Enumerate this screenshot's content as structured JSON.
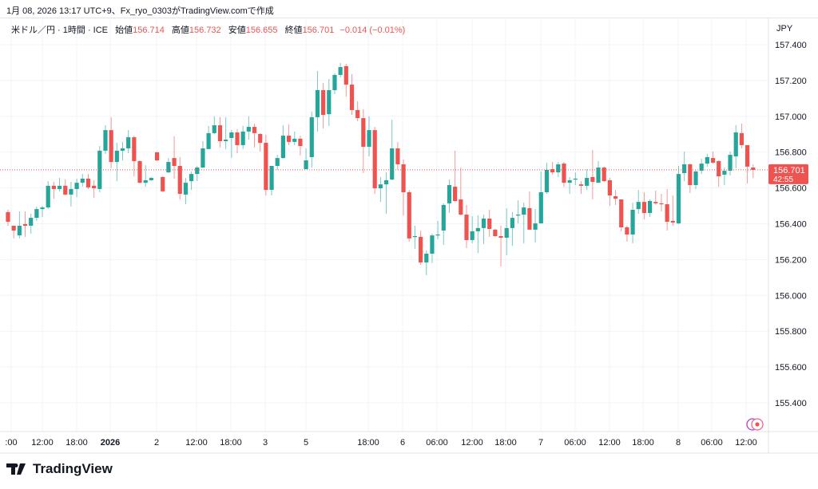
{
  "caption": "1月 08, 2026 13:17 UTC+9、Fx_ryo_0303がTradingView.comで作成",
  "legend": {
    "symbol": "米ドル／円 · 1時間 · ICE",
    "open_label": "始値",
    "open": "156.714",
    "high_label": "高値",
    "high": "156.732",
    "low_label": "安値",
    "low": "156.655",
    "close_label": "終値",
    "close": "156.701",
    "change": "−0.014 (−0.01%)"
  },
  "brand": "TradingView",
  "icons": {
    "logo": "tradingview-logo-icon",
    "markers": [
      "purple-circle-marker-icon",
      "red-target-marker-icon"
    ]
  },
  "colors": {
    "up": "#26a69a",
    "down": "#ef5350",
    "grid": "#f0f3fa",
    "text": "#131722"
  },
  "chart_data": {
    "type": "candlestick",
    "symbol": "USD/JPY",
    "timeframe": "1時間",
    "currency_label": "JPY",
    "ylim": [
      155.3,
      157.45
    ],
    "y_ticks": [
      "157.400",
      "157.200",
      "157.000",
      "156.800",
      "156.600",
      "156.400",
      "156.200",
      "156.000",
      "155.800",
      "155.600",
      "155.400"
    ],
    "x_ticks": [
      ":00",
      "12:00",
      "18:00",
      "2026",
      "2",
      "12:00",
      "18:00",
      "3",
      "5",
      "18:00",
      "6",
      "06:00",
      "12:00",
      "18:00",
      "7",
      "06:00",
      "12:00",
      "18:00",
      "8",
      "06:00",
      "12:00"
    ],
    "bold_x_tick": "2026",
    "last_price": "156.701",
    "countdown": "42:55",
    "grid": true,
    "candles_ohlc": [
      [
        156.465,
        156.478,
        156.389,
        156.411
      ],
      [
        156.389,
        156.389,
        156.318,
        156.362
      ],
      [
        156.335,
        156.469,
        156.318,
        156.389
      ],
      [
        156.398,
        156.469,
        156.327,
        156.389
      ],
      [
        156.389,
        156.456,
        156.344,
        156.433
      ],
      [
        156.433,
        156.496,
        156.416,
        156.482
      ],
      [
        156.482,
        156.5,
        156.438,
        156.491
      ],
      [
        156.491,
        156.638,
        156.482,
        156.612
      ],
      [
        156.612,
        156.634,
        156.54,
        156.594
      ],
      [
        156.594,
        156.656,
        156.58,
        156.612
      ],
      [
        156.612,
        156.647,
        156.558,
        156.563
      ],
      [
        156.563,
        156.634,
        156.496,
        156.594
      ],
      [
        156.594,
        156.652,
        156.549,
        156.629
      ],
      [
        156.629,
        156.678,
        156.607,
        156.652
      ],
      [
        156.652,
        156.678,
        156.594,
        156.603
      ],
      [
        156.612,
        156.643,
        156.545,
        156.598
      ],
      [
        156.594,
        156.834,
        156.576,
        156.808
      ],
      [
        156.808,
        156.95,
        156.79,
        156.923
      ],
      [
        156.923,
        156.995,
        156.71,
        156.745
      ],
      [
        156.745,
        156.852,
        156.638,
        156.808
      ],
      [
        156.808,
        156.857,
        156.754,
        156.821
      ],
      [
        156.821,
        156.923,
        156.794,
        156.883
      ],
      [
        156.883,
        156.892,
        156.665,
        156.75
      ],
      [
        156.75,
        156.754,
        156.625,
        156.629
      ],
      [
        156.629,
        156.727,
        156.607,
        156.643
      ],
      [
        156.643,
        156.66,
        156.64,
        156.656
      ],
      [
        156.799,
        156.803,
        156.75,
        156.754
      ],
      [
        156.661,
        156.665,
        156.576,
        156.581
      ],
      [
        156.687,
        156.767,
        156.683,
        156.745
      ],
      [
        156.767,
        156.888,
        156.652,
        156.723
      ],
      [
        156.723,
        156.772,
        156.536,
        156.567
      ],
      [
        156.563,
        156.656,
        156.509,
        156.629
      ],
      [
        156.638,
        156.692,
        156.589,
        156.678
      ],
      [
        156.678,
        156.723,
        156.638,
        156.714
      ],
      [
        156.714,
        156.861,
        156.71,
        156.821
      ],
      [
        156.817,
        156.946,
        156.817,
        156.906
      ],
      [
        156.906,
        157.0,
        156.901,
        156.95
      ],
      [
        156.95,
        156.995,
        156.826,
        156.861
      ],
      [
        156.861,
        156.995,
        156.817,
        156.87
      ],
      [
        156.879,
        156.923,
        156.768,
        156.91
      ],
      [
        156.91,
        156.928,
        156.794,
        156.839
      ],
      [
        156.839,
        156.946,
        156.817,
        156.915
      ],
      [
        156.915,
        157.0,
        156.87,
        156.941
      ],
      [
        156.941,
        156.959,
        156.826,
        156.906
      ],
      [
        156.901,
        156.906,
        156.803,
        156.852
      ],
      [
        156.852,
        156.897,
        156.558,
        156.589
      ],
      [
        156.589,
        156.723,
        156.558,
        156.723
      ],
      [
        156.723,
        156.785,
        156.701,
        156.767
      ],
      [
        156.767,
        156.95,
        156.763,
        156.892
      ],
      [
        156.892,
        156.955,
        156.839,
        156.857
      ],
      [
        156.857,
        156.915,
        156.839,
        156.875
      ],
      [
        156.875,
        156.892,
        156.781,
        156.834
      ],
      [
        156.705,
        156.821,
        156.705,
        156.754
      ],
      [
        156.772,
        157.026,
        156.714,
        156.995
      ],
      [
        156.995,
        157.253,
        156.915,
        157.146
      ],
      [
        157.146,
        157.186,
        156.932,
        157.008
      ],
      [
        157.012,
        157.208,
        156.946,
        157.146
      ],
      [
        157.146,
        157.24,
        157.124,
        157.231
      ],
      [
        157.231,
        157.298,
        157.217,
        157.275
      ],
      [
        157.28,
        157.293,
        157.11,
        157.177
      ],
      [
        157.177,
        157.235,
        157.008,
        157.035
      ],
      [
        157.035,
        157.084,
        156.972,
        156.99
      ],
      [
        156.99,
        157.039,
        156.683,
        156.83
      ],
      [
        156.83,
        157.0,
        156.776,
        156.923
      ],
      [
        156.923,
        156.941,
        156.567,
        156.598
      ],
      [
        156.598,
        156.661,
        156.522,
        156.62
      ],
      [
        156.62,
        156.687,
        156.456,
        156.643
      ],
      [
        156.647,
        156.981,
        156.643,
        156.821
      ],
      [
        156.821,
        156.857,
        156.701,
        156.732
      ],
      [
        156.732,
        156.759,
        156.447,
        156.576
      ],
      [
        156.576,
        156.589,
        156.3,
        156.318
      ],
      [
        156.327,
        156.389,
        156.26,
        156.331
      ],
      [
        156.327,
        156.362,
        156.171,
        156.184
      ],
      [
        156.184,
        156.251,
        156.113,
        156.233
      ],
      [
        156.233,
        156.344,
        156.18,
        156.335
      ],
      [
        156.335,
        156.416,
        156.313,
        156.34
      ],
      [
        156.362,
        156.514,
        156.282,
        156.505
      ],
      [
        156.514,
        156.647,
        156.46,
        156.616
      ],
      [
        156.607,
        156.808,
        156.522,
        156.527
      ],
      [
        156.536,
        156.714,
        156.447,
        156.451
      ],
      [
        156.451,
        156.505,
        156.264,
        156.309
      ],
      [
        156.309,
        156.442,
        156.291,
        156.358
      ],
      [
        156.358,
        156.447,
        156.237,
        156.376
      ],
      [
        156.376,
        156.451,
        156.287,
        156.429
      ],
      [
        156.429,
        156.478,
        156.327,
        156.371
      ],
      [
        156.367,
        156.371,
        156.327,
        156.331
      ],
      [
        156.331,
        156.389,
        156.162,
        156.322
      ],
      [
        156.322,
        156.487,
        156.224,
        156.376
      ],
      [
        156.376,
        156.465,
        156.278,
        156.433
      ],
      [
        156.447,
        156.531,
        156.402,
        156.451
      ],
      [
        156.451,
        156.518,
        156.291,
        156.491
      ],
      [
        156.487,
        156.58,
        156.367,
        156.367
      ],
      [
        156.367,
        156.482,
        156.295,
        156.402
      ],
      [
        156.402,
        156.692,
        156.402,
        156.576
      ],
      [
        156.576,
        156.741,
        156.567,
        156.701
      ],
      [
        156.705,
        156.745,
        156.674,
        156.687
      ],
      [
        156.687,
        156.745,
        156.661,
        156.732
      ],
      [
        156.736,
        156.745,
        156.607,
        156.629
      ],
      [
        156.629,
        156.661,
        156.567,
        156.643
      ],
      [
        156.65,
        156.687,
        156.616,
        156.652
      ],
      [
        156.62,
        156.638,
        156.567,
        156.612
      ],
      [
        156.612,
        156.705,
        156.589,
        156.656
      ],
      [
        156.661,
        156.812,
        156.536,
        156.634
      ],
      [
        156.629,
        156.75,
        156.629,
        156.714
      ],
      [
        156.714,
        156.719,
        156.634,
        156.638
      ],
      [
        156.643,
        156.656,
        156.5,
        156.558
      ],
      [
        156.554,
        156.589,
        156.505,
        156.54
      ],
      [
        156.536,
        156.536,
        156.358,
        156.38
      ],
      [
        156.38,
        156.389,
        156.3,
        156.34
      ],
      [
        156.34,
        156.518,
        156.291,
        156.478
      ],
      [
        156.482,
        156.589,
        156.456,
        156.522
      ],
      [
        156.522,
        156.576,
        156.424,
        156.46
      ],
      [
        156.46,
        156.536,
        156.438,
        156.527
      ],
      [
        156.522,
        156.585,
        156.505,
        156.514
      ],
      [
        156.514,
        156.567,
        156.469,
        156.509
      ],
      [
        156.509,
        156.594,
        156.362,
        156.411
      ],
      [
        156.416,
        156.558,
        156.389,
        156.407
      ],
      [
        156.402,
        156.723,
        156.398,
        156.678
      ],
      [
        156.683,
        156.803,
        156.638,
        156.732
      ],
      [
        156.732,
        156.736,
        156.572,
        156.616
      ],
      [
        156.616,
        156.701,
        156.594,
        156.692
      ],
      [
        156.696,
        156.763,
        156.678,
        156.736
      ],
      [
        156.736,
        156.79,
        156.719,
        156.772
      ],
      [
        156.767,
        156.803,
        156.736,
        156.741
      ],
      [
        156.75,
        156.754,
        156.607,
        156.665
      ],
      [
        156.674,
        156.714,
        156.616,
        156.696
      ],
      [
        156.696,
        156.803,
        156.669,
        156.785
      ],
      [
        156.776,
        156.95,
        156.71,
        156.91
      ],
      [
        156.906,
        156.959,
        156.821,
        156.839
      ],
      [
        156.839,
        156.839,
        156.625,
        156.719
      ],
      [
        156.714,
        156.732,
        156.655,
        156.701
      ]
    ]
  }
}
